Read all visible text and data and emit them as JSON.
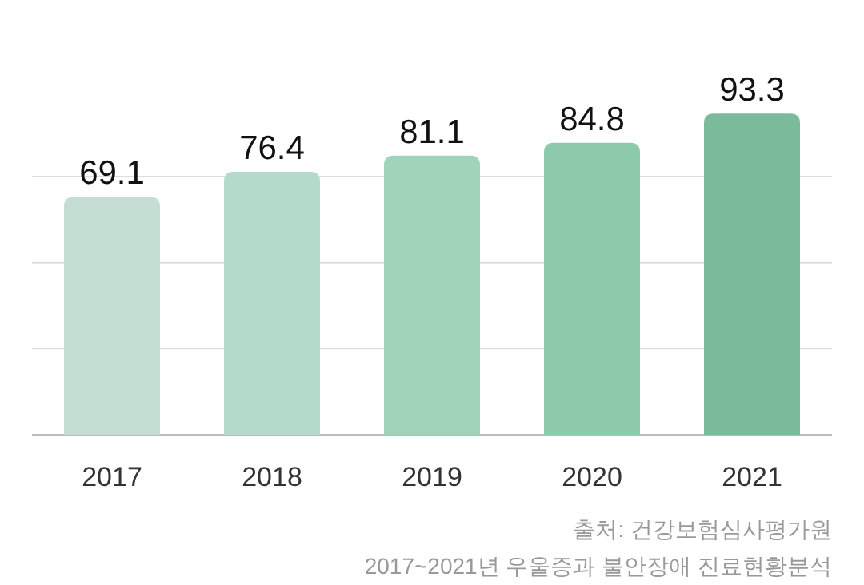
{
  "chart_data": {
    "type": "bar",
    "categories": [
      "2017",
      "2018",
      "2019",
      "2020",
      "2021"
    ],
    "values": [
      69.1,
      76.4,
      81.1,
      84.8,
      93.3
    ],
    "colors": [
      "#c5ded3",
      "#b4dbc9",
      "#a1d3ba",
      "#8ccaab",
      "#7bbb9c"
    ],
    "yticks": [
      {
        "value": 0,
        "label": null
      },
      {
        "value": 25,
        "label": null
      },
      {
        "value": 50,
        "label": null
      },
      {
        "value": 75,
        "label": null
      }
    ],
    "grid": "y",
    "tick_labels": "x",
    "data_labels": true,
    "annotations": [
      "출처: 건강보험심사평가원",
      "2017~2021년 우울증과 불안장애 진료현황분석"
    ]
  }
}
